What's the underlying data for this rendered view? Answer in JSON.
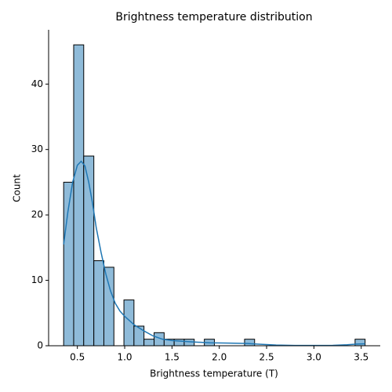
{
  "chart_data": {
    "type": "histogram",
    "title": "Brightness temperature distribution",
    "xlabel": "Brightness temperature (T)",
    "ylabel": "Count",
    "bins": [
      0.355,
      0.461,
      0.567,
      0.674,
      0.78,
      0.886,
      0.992,
      1.098,
      1.204,
      1.311,
      1.417,
      1.523,
      1.629,
      1.735,
      1.842,
      1.948,
      2.054,
      2.16,
      2.267,
      2.373,
      2.479,
      2.585,
      2.691,
      2.798,
      2.904,
      3.01,
      3.116,
      3.222,
      3.329,
      3.435,
      3.541
    ],
    "counts": [
      25,
      46,
      29,
      13,
      12,
      0,
      7,
      3,
      1,
      2,
      1,
      1,
      1,
      0,
      1,
      0,
      0,
      0,
      1,
      0,
      0,
      0,
      0,
      0,
      0,
      0,
      0,
      0,
      0,
      1
    ],
    "color": "#8fbbd9",
    "edgecolor": "#000000",
    "kde": {
      "color": "#1f77b4",
      "x": [
        0.355,
        0.4,
        0.45,
        0.5,
        0.54,
        0.58,
        0.62,
        0.66,
        0.7,
        0.75,
        0.8,
        0.85,
        0.9,
        0.95,
        1.0,
        1.1,
        1.2,
        1.3,
        1.4,
        1.5,
        1.7,
        1.9,
        2.1,
        2.3,
        2.4,
        2.6,
        2.8,
        3.0,
        3.2,
        3.35,
        3.45,
        3.541
      ],
      "values": [
        15.5,
        20.5,
        25.0,
        27.6,
        28.2,
        27.5,
        25.0,
        21.8,
        18.0,
        14.3,
        11.0,
        8.4,
        6.5,
        5.3,
        4.5,
        3.2,
        2.3,
        1.5,
        1.0,
        0.8,
        0.6,
        0.45,
        0.4,
        0.35,
        0.25,
        0.1,
        0.05,
        0.04,
        0.06,
        0.15,
        0.25,
        0.3
      ]
    },
    "xlim": [
      0.196,
      3.701
    ],
    "ylim": [
      0,
      48.3
    ],
    "xticks": [
      0.5,
      {
        "value": 1.0,
        "label": "1.0"
      },
      1.5,
      {
        "value": 2.0,
        "label": "2.0"
      },
      2.5,
      {
        "value": 3.0,
        "label": "3.0"
      },
      3.5
    ],
    "yticks": [
      0,
      10,
      20,
      30,
      40
    ]
  }
}
